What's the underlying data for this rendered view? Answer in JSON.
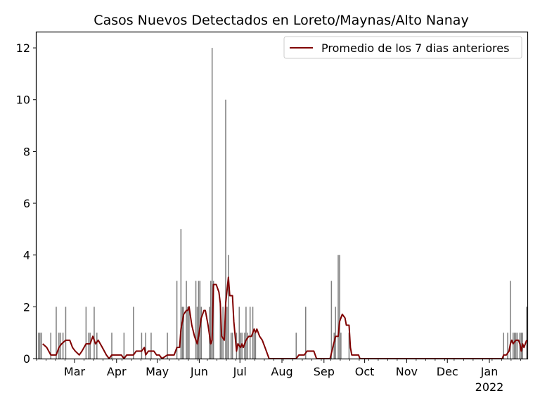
{
  "chart_data": {
    "type": "bar",
    "title": "Casos Nuevos Detectados en Loreto/Maynas/Alto Nanay",
    "xlabel": "",
    "ylabel": "",
    "x_range": [
      "2021-02-01",
      "2022-01-28"
    ],
    "ylim": [
      0,
      12.6
    ],
    "y_ticks": [
      0,
      2,
      4,
      6,
      8,
      10,
      12
    ],
    "x_ticks": [
      {
        "date": "2021-03-01",
        "label": "Mar"
      },
      {
        "date": "2021-04-01",
        "label": "Apr"
      },
      {
        "date": "2021-05-01",
        "label": "May"
      },
      {
        "date": "2021-06-01",
        "label": "Jun"
      },
      {
        "date": "2021-07-01",
        "label": "Jul"
      },
      {
        "date": "2021-08-01",
        "label": "Aug"
      },
      {
        "date": "2021-09-01",
        "label": "Sep"
      },
      {
        "date": "2021-10-01",
        "label": "Oct"
      },
      {
        "date": "2021-11-01",
        "label": "Nov"
      },
      {
        "date": "2021-12-01",
        "label": "Dec"
      },
      {
        "date": "2022-01-01",
        "label": "Jan"
      }
    ],
    "x_year_label": {
      "date": "2022-01-01",
      "label": "2022"
    },
    "grid": false,
    "legend": {
      "position": "top-right"
    },
    "bar_color": "#808080",
    "series": [
      {
        "type": "bar",
        "color": "#808080",
        "points": [
          [
            "2021-02-02",
            1
          ],
          [
            "2021-02-03",
            1
          ],
          [
            "2021-02-04",
            1
          ],
          [
            "2021-02-11",
            1
          ],
          [
            "2021-02-15",
            2
          ],
          [
            "2021-02-17",
            1
          ],
          [
            "2021-02-18",
            1
          ],
          [
            "2021-02-20",
            1
          ],
          [
            "2021-02-22",
            2
          ],
          [
            "2021-03-09",
            2
          ],
          [
            "2021-03-11",
            1
          ],
          [
            "2021-03-12",
            1
          ],
          [
            "2021-03-15",
            2
          ],
          [
            "2021-03-17",
            1
          ],
          [
            "2021-03-28",
            1
          ],
          [
            "2021-04-06",
            1
          ],
          [
            "2021-04-13",
            2
          ],
          [
            "2021-04-19",
            1
          ],
          [
            "2021-04-22",
            1
          ],
          [
            "2021-04-26",
            1
          ],
          [
            "2021-05-08",
            1
          ],
          [
            "2021-05-15",
            3
          ],
          [
            "2021-05-18",
            5
          ],
          [
            "2021-05-19",
            2
          ],
          [
            "2021-05-20",
            2
          ],
          [
            "2021-05-22",
            3
          ],
          [
            "2021-05-23",
            2
          ],
          [
            "2021-05-24",
            2
          ],
          [
            "2021-05-29",
            3
          ],
          [
            "2021-05-30",
            2
          ],
          [
            "2021-05-31",
            3
          ],
          [
            "2021-06-01",
            3
          ],
          [
            "2021-06-02",
            2
          ],
          [
            "2021-06-08",
            2
          ],
          [
            "2021-06-09",
            3
          ],
          [
            "2021-06-10",
            12
          ],
          [
            "2021-06-11",
            3
          ],
          [
            "2021-06-16",
            2
          ],
          [
            "2021-06-17",
            1
          ],
          [
            "2021-06-18",
            2
          ],
          [
            "2021-06-20",
            10
          ],
          [
            "2021-06-21",
            2
          ],
          [
            "2021-06-22",
            4
          ],
          [
            "2021-06-24",
            1
          ],
          [
            "2021-06-25",
            1
          ],
          [
            "2021-06-28",
            1
          ],
          [
            "2021-06-30",
            2
          ],
          [
            "2021-07-01",
            1
          ],
          [
            "2021-07-02",
            1
          ],
          [
            "2021-07-04",
            1
          ],
          [
            "2021-07-05",
            2
          ],
          [
            "2021-07-06",
            1
          ],
          [
            "2021-07-08",
            2
          ],
          [
            "2021-07-10",
            2
          ],
          [
            "2021-07-11",
            1
          ],
          [
            "2021-07-12",
            1
          ],
          [
            "2021-08-11",
            1
          ],
          [
            "2021-08-18",
            2
          ],
          [
            "2021-09-06",
            3
          ],
          [
            "2021-09-08",
            1
          ],
          [
            "2021-09-09",
            2
          ],
          [
            "2021-09-11",
            4
          ],
          [
            "2021-09-12",
            4
          ],
          [
            "2021-09-13",
            1
          ],
          [
            "2021-09-19",
            1
          ],
          [
            "2022-01-11",
            1
          ],
          [
            "2022-01-14",
            1
          ],
          [
            "2022-01-16",
            3
          ],
          [
            "2022-01-18",
            1
          ],
          [
            "2022-01-19",
            1
          ],
          [
            "2022-01-20",
            1
          ],
          [
            "2022-01-21",
            1
          ],
          [
            "2022-01-23",
            1
          ],
          [
            "2022-01-24",
            1
          ],
          [
            "2022-01-25",
            1
          ],
          [
            "2022-01-28",
            2
          ]
        ]
      },
      {
        "type": "line",
        "name": "Promedio de los 7 dias anteriores",
        "color": "#800000",
        "points": [
          [
            "2021-02-05",
            0.57
          ],
          [
            "2021-02-08",
            0.43
          ],
          [
            "2021-02-11",
            0.14
          ],
          [
            "2021-02-15",
            0.14
          ],
          [
            "2021-02-17",
            0.43
          ],
          [
            "2021-02-19",
            0.57
          ],
          [
            "2021-02-22",
            0.71
          ],
          [
            "2021-02-25",
            0.71
          ],
          [
            "2021-02-27",
            0.43
          ],
          [
            "2021-03-01",
            0.29
          ],
          [
            "2021-03-04",
            0.14
          ],
          [
            "2021-03-06",
            0.29
          ],
          [
            "2021-03-09",
            0.57
          ],
          [
            "2021-03-12",
            0.57
          ],
          [
            "2021-03-14",
            0.86
          ],
          [
            "2021-03-16",
            0.57
          ],
          [
            "2021-03-18",
            0.71
          ],
          [
            "2021-03-21",
            0.43
          ],
          [
            "2021-03-24",
            0.14
          ],
          [
            "2021-03-26",
            0.0
          ],
          [
            "2021-03-28",
            0.14
          ],
          [
            "2021-04-04",
            0.14
          ],
          [
            "2021-04-06",
            0.0
          ],
          [
            "2021-04-08",
            0.14
          ],
          [
            "2021-04-13",
            0.14
          ],
          [
            "2021-04-15",
            0.29
          ],
          [
            "2021-04-19",
            0.29
          ],
          [
            "2021-04-21",
            0.43
          ],
          [
            "2021-04-22",
            0.14
          ],
          [
            "2021-04-24",
            0.29
          ],
          [
            "2021-04-28",
            0.29
          ],
          [
            "2021-04-30",
            0.14
          ],
          [
            "2021-05-02",
            0.14
          ],
          [
            "2021-05-04",
            0.0
          ],
          [
            "2021-05-08",
            0.14
          ],
          [
            "2021-05-13",
            0.14
          ],
          [
            "2021-05-15",
            0.43
          ],
          [
            "2021-05-17",
            0.43
          ],
          [
            "2021-05-18",
            1.14
          ],
          [
            "2021-05-20",
            1.71
          ],
          [
            "2021-05-22",
            1.86
          ],
          [
            "2021-05-23",
            1.86
          ],
          [
            "2021-05-24",
            2.0
          ],
          [
            "2021-05-26",
            1.29
          ],
          [
            "2021-05-28",
            0.86
          ],
          [
            "2021-05-30",
            0.57
          ],
          [
            "2021-05-31",
            0.86
          ],
          [
            "2021-06-02",
            1.57
          ],
          [
            "2021-06-04",
            1.86
          ],
          [
            "2021-06-05",
            1.86
          ],
          [
            "2021-06-07",
            1.29
          ],
          [
            "2021-06-09",
            0.57
          ],
          [
            "2021-06-10",
            0.71
          ],
          [
            "2021-06-11",
            2.86
          ],
          [
            "2021-06-13",
            2.86
          ],
          [
            "2021-06-15",
            2.57
          ],
          [
            "2021-06-16",
            2.14
          ],
          [
            "2021-06-17",
            0.86
          ],
          [
            "2021-06-19",
            0.71
          ],
          [
            "2021-06-20",
            2.14
          ],
          [
            "2021-06-22",
            3.14
          ],
          [
            "2021-06-23",
            2.43
          ],
          [
            "2021-06-25",
            2.43
          ],
          [
            "2021-06-26",
            1.43
          ],
          [
            "2021-06-28",
            0.29
          ],
          [
            "2021-06-29",
            0.57
          ],
          [
            "2021-07-01",
            0.43
          ],
          [
            "2021-07-02",
            0.57
          ],
          [
            "2021-07-03",
            0.43
          ],
          [
            "2021-07-05",
            0.71
          ],
          [
            "2021-07-07",
            0.86
          ],
          [
            "2021-07-09",
            0.86
          ],
          [
            "2021-07-11",
            1.14
          ],
          [
            "2021-07-12",
            1.0
          ],
          [
            "2021-07-13",
            1.14
          ],
          [
            "2021-07-15",
            0.86
          ],
          [
            "2021-07-17",
            0.71
          ],
          [
            "2021-07-19",
            0.43
          ],
          [
            "2021-07-22",
            0.0
          ],
          [
            "2021-08-11",
            0.0
          ],
          [
            "2021-08-13",
            0.14
          ],
          [
            "2021-08-17",
            0.14
          ],
          [
            "2021-08-19",
            0.29
          ],
          [
            "2021-08-24",
            0.29
          ],
          [
            "2021-08-26",
            0.0
          ],
          [
            "2021-09-05",
            0.0
          ],
          [
            "2021-09-07",
            0.43
          ],
          [
            "2021-09-09",
            0.86
          ],
          [
            "2021-09-11",
            0.86
          ],
          [
            "2021-09-12",
            1.43
          ],
          [
            "2021-09-14",
            1.71
          ],
          [
            "2021-09-16",
            1.57
          ],
          [
            "2021-09-17",
            1.29
          ],
          [
            "2021-09-19",
            1.29
          ],
          [
            "2021-09-20",
            0.43
          ],
          [
            "2021-09-21",
            0.14
          ],
          [
            "2021-09-26",
            0.14
          ],
          [
            "2021-09-27",
            0.0
          ],
          [
            "2022-01-10",
            0.0
          ],
          [
            "2022-01-11",
            0.14
          ],
          [
            "2022-01-13",
            0.14
          ],
          [
            "2022-01-15",
            0.29
          ],
          [
            "2022-01-16",
            0.57
          ],
          [
            "2022-01-17",
            0.71
          ],
          [
            "2022-01-18",
            0.57
          ],
          [
            "2022-01-20",
            0.71
          ],
          [
            "2022-01-22",
            0.71
          ],
          [
            "2022-01-23",
            0.57
          ],
          [
            "2022-01-24",
            0.29
          ],
          [
            "2022-01-25",
            0.57
          ],
          [
            "2022-01-26",
            0.43
          ],
          [
            "2022-01-27",
            0.57
          ],
          [
            "2022-01-28",
            0.71
          ]
        ]
      }
    ]
  }
}
